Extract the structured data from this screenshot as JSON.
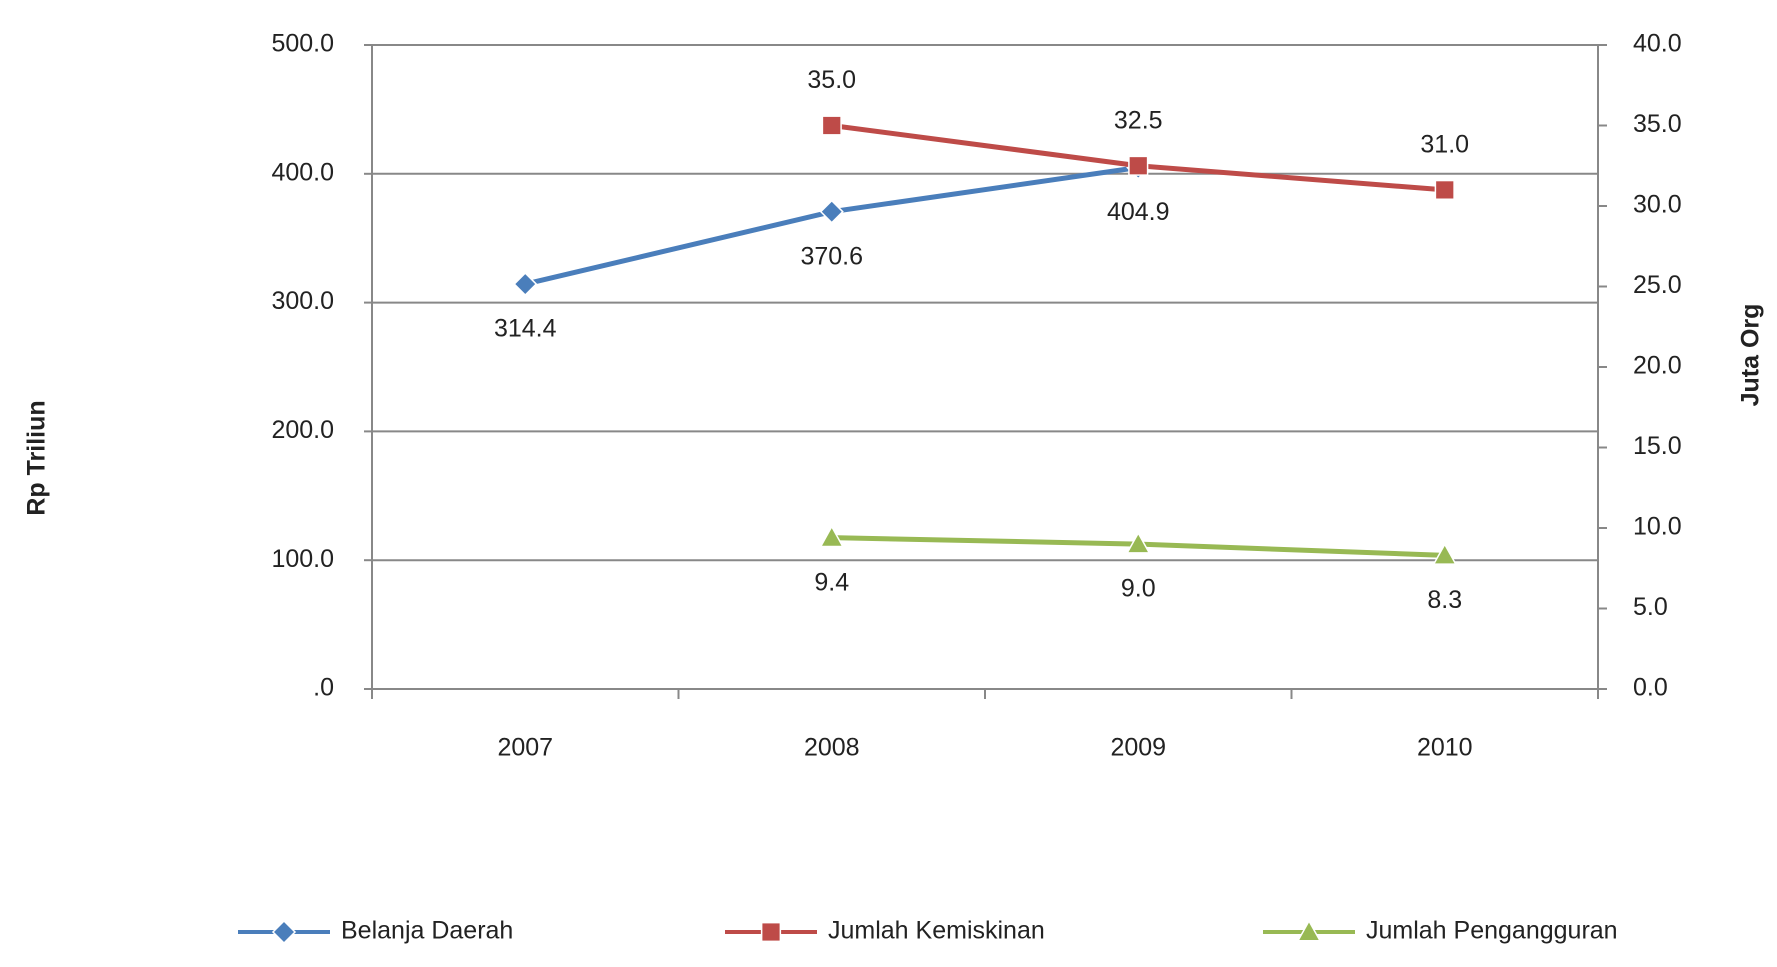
{
  "chart_data": {
    "type": "line",
    "categories": [
      "2007",
      "2008",
      "2009",
      "2010"
    ],
    "y_label": "Rp Triliun",
    "y2_label": "Juta Org",
    "ylim": [
      0,
      500
    ],
    "yticks": [
      {
        "value": 0,
        "label": ".0"
      },
      {
        "value": 100,
        "label": "100.0"
      },
      {
        "value": 200,
        "label": "200.0"
      },
      {
        "value": 300,
        "label": "300.0"
      },
      {
        "value": 400,
        "label": "400.0"
      },
      {
        "value": 500,
        "label": "500.0"
      }
    ],
    "y2lim": [
      0,
      40
    ],
    "y2ticks": [
      {
        "value": 0,
        "label": "0.0"
      },
      {
        "value": 5,
        "label": "5.0"
      },
      {
        "value": 10,
        "label": "10.0"
      },
      {
        "value": 15,
        "label": "15.0"
      },
      {
        "value": 20,
        "label": "20.0"
      },
      {
        "value": 25,
        "label": "25.0"
      },
      {
        "value": 30,
        "label": "30.0"
      },
      {
        "value": 35,
        "label": "35.0"
      },
      {
        "value": 40,
        "label": "40.0"
      }
    ],
    "grid": true,
    "legend": "bottom",
    "series": [
      {
        "name": "Belanja Daerah",
        "color": "#4a7ebb",
        "marker": "diamond",
        "label_position": "below",
        "values": [
          314.4,
          370.6,
          404.9,
          null
        ],
        "value_labels": [
          "314.4",
          "370.6",
          "404.9",
          null
        ]
      },
      {
        "name": "Jumlah Kemiskinan",
        "color": "#be4b48",
        "marker": "square",
        "axis": "y2",
        "label_position": "above",
        "values": [
          null,
          35,
          32.5,
          31
        ],
        "value_labels": [
          null,
          "35.0",
          "32.5",
          "31.0"
        ]
      },
      {
        "name": "Jumlah Pengangguran",
        "color": "#98b954",
        "marker": "triangle",
        "axis": "y2",
        "label_position": "below",
        "values": [
          null,
          9.4,
          9,
          8.3
        ],
        "value_labels": [
          null,
          "9.4",
          "9.0",
          "8.3"
        ]
      }
    ]
  }
}
